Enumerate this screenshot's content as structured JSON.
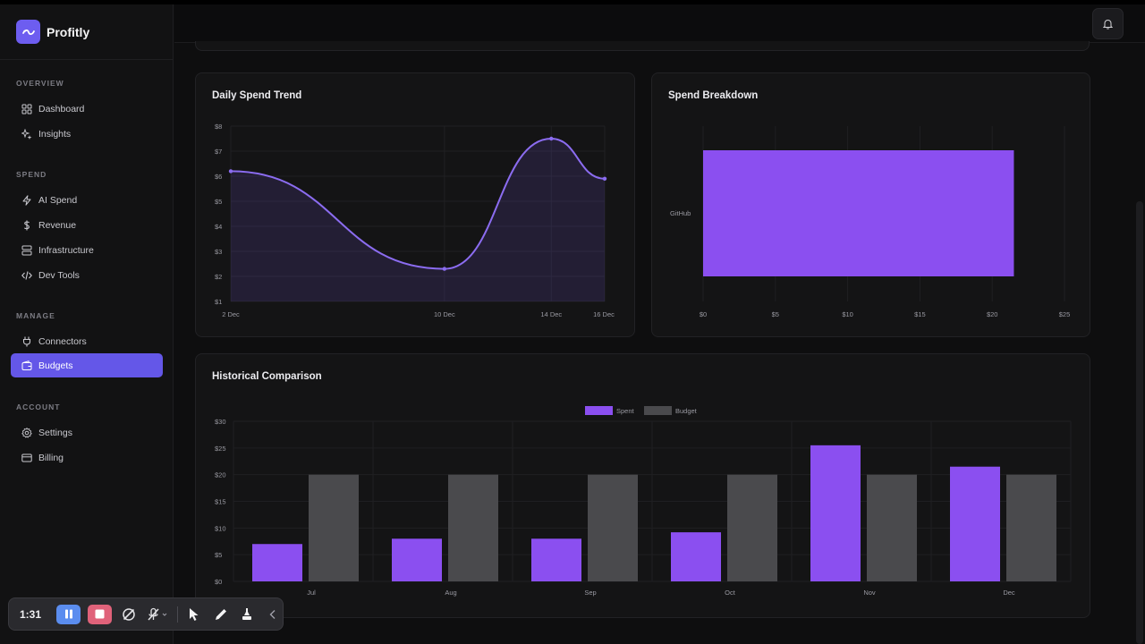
{
  "app": {
    "name": "Profitly"
  },
  "sidebar": {
    "sections": [
      {
        "label": "OVERVIEW",
        "items": [
          {
            "label": "Dashboard",
            "icon": "grid-icon"
          },
          {
            "label": "Insights",
            "icon": "sparkle-icon"
          }
        ]
      },
      {
        "label": "SPEND",
        "items": [
          {
            "label": "AI Spend",
            "icon": "bolt-icon"
          },
          {
            "label": "Revenue",
            "icon": "dollar-icon"
          },
          {
            "label": "Infrastructure",
            "icon": "server-icon"
          },
          {
            "label": "Dev Tools",
            "icon": "code-icon"
          }
        ]
      },
      {
        "label": "MANAGE",
        "items": [
          {
            "label": "Connectors",
            "icon": "plug-icon"
          },
          {
            "label": "Budgets",
            "icon": "wallet-icon",
            "active": true
          }
        ]
      },
      {
        "label": "ACCOUNT",
        "items": [
          {
            "label": "Settings",
            "icon": "gear-icon"
          },
          {
            "label": "Billing",
            "icon": "card-icon"
          }
        ]
      }
    ]
  },
  "colors": {
    "accent": "#6457e8",
    "spent": "#8b4ff0",
    "budget": "#4a4a4d",
    "line": "#8b6cf0"
  },
  "cards": {
    "daily_trend": {
      "title": "Daily Spend Trend"
    },
    "breakdown": {
      "title": "Spend Breakdown"
    },
    "historical": {
      "title": "Historical Comparison"
    }
  },
  "recorder": {
    "time": "1:31"
  },
  "chart_data": [
    {
      "type": "line",
      "title": "Daily Spend Trend",
      "x": [
        "2 Dec",
        "10 Dec",
        "14 Dec",
        "16 Dec"
      ],
      "x_pos": [
        0,
        8,
        12,
        14
      ],
      "values": [
        6.2,
        2.3,
        7.5,
        5.9
      ],
      "yticks": [
        "$1",
        "$2",
        "$3",
        "$4",
        "$5",
        "$6",
        "$7",
        "$8"
      ],
      "ylim": [
        1,
        8
      ],
      "fill": true
    },
    {
      "type": "bar",
      "orientation": "horizontal",
      "title": "Spend Breakdown",
      "categories": [
        "GitHub"
      ],
      "values": [
        21.5
      ],
      "xticks": [
        "$0",
        "$5",
        "$10",
        "$15",
        "$20",
        "$25"
      ],
      "xlim": [
        0,
        25
      ]
    },
    {
      "type": "bar",
      "title": "Historical Comparison",
      "categories": [
        "Jul",
        "Aug",
        "Sep",
        "Oct",
        "Nov",
        "Dec"
      ],
      "series": [
        {
          "name": "Spent",
          "values": [
            7,
            8,
            8,
            9.2,
            25.5,
            21.5
          ]
        },
        {
          "name": "Budget",
          "values": [
            20,
            20,
            20,
            20,
            20,
            20
          ]
        }
      ],
      "yticks": [
        "$0",
        "$5",
        "$10",
        "$15",
        "$20",
        "$25",
        "$30"
      ],
      "ylim": [
        0,
        30
      ]
    }
  ]
}
